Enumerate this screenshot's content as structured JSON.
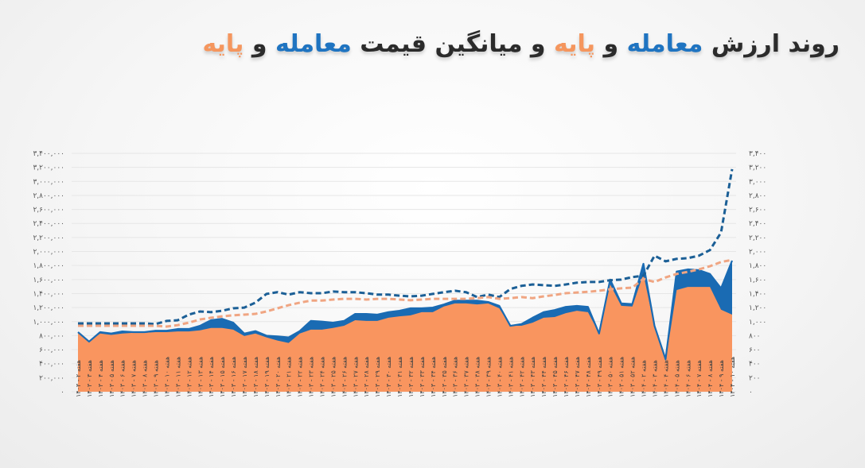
{
  "title": {
    "parts": [
      {
        "text": "روند ارزش ",
        "color": "dark"
      },
      {
        "text": "معامله",
        "color": "blue"
      },
      {
        "text": " و ",
        "color": "dark"
      },
      {
        "text": "پایه",
        "color": "orange"
      },
      {
        "text": " و میانگین قیمت ",
        "color": "dark"
      },
      {
        "text": "معامله",
        "color": "blue"
      },
      {
        "text": " و ",
        "color": "dark"
      },
      {
        "text": "پایه",
        "color": "orange"
      }
    ]
  },
  "colors": {
    "trade": "#1a6bb3",
    "base": "#f9955f",
    "trade_dash": "#1b5f96",
    "base_dash": "#f0a582",
    "grid": "#e6e6e6"
  },
  "left_axis_ticks": [
    "۰",
    "۲۰۰,۰۰۰",
    "۴۰۰,۰۰۰",
    "۶۰۰,۰۰۰",
    "۸۰۰,۰۰۰",
    "۱,۰۰۰,۰۰۰",
    "۱,۲۰۰,۰۰۰",
    "۱,۴۰۰,۰۰۰",
    "۱,۶۰۰,۰۰۰",
    "۱,۸۰۰,۰۰۰",
    "۲,۰۰۰,۰۰۰",
    "۲,۲۰۰,۰۰۰",
    "۲,۴۰۰,۰۰۰",
    "۲,۶۰۰,۰۰۰",
    "۲,۸۰۰,۰۰۰",
    "۳,۰۰۰,۰۰۰",
    "۳,۲۰۰,۰۰۰",
    "۳,۴۰۰,۰۰۰"
  ],
  "right_axis_ticks": [
    "۰",
    "۲۰۰",
    "۴۰۰",
    "۶۰۰",
    "۸۰۰",
    "۱,۰۰۰",
    "۱,۲۰۰",
    "۱,۴۰۰",
    "۱,۶۰۰",
    "۱,۸۰۰",
    "۲,۰۰۰",
    "۲,۲۰۰",
    "۲,۴۰۰",
    "۲,۶۰۰",
    "۲,۸۰۰",
    "۳,۰۰۰",
    "۳,۲۰۰",
    "۳,۴۰۰"
  ],
  "chart_data": {
    "type": "area",
    "title": "روند ارزش معامله و پایه و میانگین قیمت معامله و پایه",
    "xlabel": "",
    "ylabel": "",
    "ylim": [
      0,
      3400000
    ],
    "y2lim": [
      0,
      3400
    ],
    "grid": true,
    "legend": "none",
    "categories": [
      "هفته ۲ - ۱۴۰۳",
      "هفته ۳ - ۱۴۰۳",
      "هفته ۴ - ۱۴۰۳",
      "هفته ۵ - ۱۴۰۳",
      "هفته ۶ - ۱۴۰۳",
      "هفته ۷ - ۱۴۰۳",
      "هفته ۸ - ۱۴۰۳",
      "هفته ۹ - ۱۴۰۳",
      "هفته ۱۰ - ۱۴۰۳",
      "هفته ۱۱ - ۱۴۰۳",
      "هفته ۱۲ - ۱۴۰۳",
      "هفته ۱۳ - ۱۴۰۳",
      "هفته ۱۴ - ۱۴۰۳",
      "هفته ۱۵ - ۱۴۰۳",
      "هفته ۱۶ - ۱۴۰۳",
      "هفته ۱۷ - ۱۴۰۳",
      "هفته ۱۸ - ۱۴۰۳",
      "هفته ۱۹ - ۱۴۰۳",
      "هفته ۲۰ - ۱۴۰۳",
      "هفته ۲۱ - ۱۴۰۳",
      "هفته ۲۲ - ۱۴۰۳",
      "هفته ۲۳ - ۱۴۰۳",
      "هفته ۲۴ - ۱۴۰۳",
      "هفته ۲۵ - ۱۴۰۳",
      "هفته ۲۶ - ۱۴۰۳",
      "هفته ۲۷ - ۱۴۰۳",
      "هفته ۲۸ - ۱۴۰۳",
      "هفته ۲۹ - ۱۴۰۳",
      "هفته ۳۰ - ۱۴۰۳",
      "هفته ۳۱ - ۱۴۰۳",
      "هفته ۳۲ - ۱۴۰۳",
      "هفته ۳۳ - ۱۴۰۳",
      "هفته ۳۴ - ۱۴۰۳",
      "هفته ۳۵ - ۱۴۰۳",
      "هفته ۳۶ - ۱۴۰۳",
      "هفته ۳۷ - ۱۴۰۳",
      "هفته ۳۸ - ۱۴۰۳",
      "هفته ۳۹ - ۱۴۰۳",
      "هفته ۴۰ - ۱۴۰۳",
      "هفته ۴۱ - ۱۴۰۳",
      "هفته ۴۲ - ۱۴۰۳",
      "هفته ۴۳ - ۱۴۰۳",
      "هفته ۴۴ - ۱۴۰۳",
      "هفته ۴۵ - ۱۴۰۳",
      "هفته ۴۶ - ۱۴۰۳",
      "هفته ۴۷ - ۱۴۰۳",
      "هفته ۴۸ - ۱۴۰۳",
      "هفته ۴۹ - ۱۴۰۳",
      "هفته ۵۰ - ۱۴۰۳",
      "هفته ۵۱ - ۱۴۰۳",
      "هفته ۵۲ - ۱۴۰۳",
      "هفته ۲ - ۱۴۰۴",
      "هفته ۳ - ۱۴۰۴",
      "هفته ۴ - ۱۴۰۴",
      "هفته ۵ - ۱۴۰۴",
      "هفته ۶ - ۱۴۰۴",
      "هفته ۷ - ۱۴۰۴",
      "هفته ۸ - ۱۴۰۴",
      "هفته ۹ - ۱۴۰۴",
      "هفته ۱۰ - ۱۴۰۴"
    ],
    "series": [
      {
        "name": "ارزش معامله",
        "type": "area",
        "axis": "left",
        "color": "#1a6bb3",
        "values": [
          850000,
          715000,
          850000,
          830000,
          860000,
          850000,
          850000,
          870000,
          870000,
          895000,
          895000,
          940000,
          1020000,
          1040000,
          985000,
          830000,
          865000,
          800000,
          790000,
          775000,
          865000,
          1010000,
          1000000,
          985000,
          1010000,
          1110000,
          1110000,
          1100000,
          1135000,
          1155000,
          1190000,
          1190000,
          1200000,
          1245000,
          1300000,
          1300000,
          1300000,
          1280000,
          1225000,
          940000,
          965000,
          1055000,
          1135000,
          1165000,
          1210000,
          1225000,
          1210000,
          830000,
          1600000,
          1260000,
          1250000,
          1825000,
          940000,
          465000,
          1715000,
          1745000,
          1735000,
          1680000,
          1475000,
          1870000
        ]
      },
      {
        "name": "ارزش پایه",
        "type": "area",
        "axis": "left",
        "color": "#f9955f",
        "values": [
          850000,
          715000,
          830000,
          810000,
          830000,
          840000,
          840000,
          850000,
          850000,
          860000,
          860000,
          875000,
          910000,
          910000,
          885000,
          795000,
          830000,
          775000,
          730000,
          695000,
          830000,
          885000,
          885000,
          910000,
          940000,
          1020000,
          1010000,
          1010000,
          1055000,
          1075000,
          1090000,
          1135000,
          1135000,
          1215000,
          1260000,
          1260000,
          1245000,
          1260000,
          1190000,
          940000,
          940000,
          985000,
          1055000,
          1065000,
          1120000,
          1155000,
          1135000,
          830000,
          1530000,
          1225000,
          1215000,
          1680000,
          915000,
          430000,
          1450000,
          1495000,
          1495000,
          1495000,
          1170000,
          1100000
        ]
      },
      {
        "name": "میانگین قیمت معامله",
        "type": "line",
        "style": "dashed",
        "axis": "right",
        "color": "#1b5f96",
        "values": [
          975,
          975,
          975,
          975,
          975,
          975,
          975,
          965,
          1010,
          1020,
          1100,
          1145,
          1135,
          1155,
          1190,
          1200,
          1270,
          1395,
          1420,
          1385,
          1420,
          1405,
          1405,
          1430,
          1420,
          1420,
          1405,
          1385,
          1385,
          1370,
          1360,
          1370,
          1395,
          1420,
          1440,
          1420,
          1350,
          1385,
          1350,
          1465,
          1510,
          1530,
          1520,
          1510,
          1530,
          1555,
          1565,
          1565,
          1590,
          1600,
          1635,
          1655,
          1940,
          1860,
          1895,
          1905,
          1940,
          2020,
          2270,
          3175
        ]
      },
      {
        "name": "میانگین قیمت پایه",
        "type": "line",
        "style": "dashed",
        "axis": "right",
        "color": "#f0a582",
        "values": [
          940,
          940,
          940,
          940,
          940,
          940,
          940,
          940,
          930,
          950,
          985,
          1030,
          1055,
          1075,
          1090,
          1100,
          1110,
          1145,
          1190,
          1235,
          1270,
          1300,
          1300,
          1315,
          1325,
          1325,
          1315,
          1325,
          1325,
          1315,
          1305,
          1315,
          1325,
          1325,
          1325,
          1325,
          1335,
          1350,
          1325,
          1335,
          1350,
          1335,
          1360,
          1380,
          1405,
          1415,
          1425,
          1440,
          1460,
          1475,
          1485,
          1610,
          1565,
          1630,
          1680,
          1710,
          1745,
          1790,
          1850,
          1880
        ]
      }
    ]
  }
}
